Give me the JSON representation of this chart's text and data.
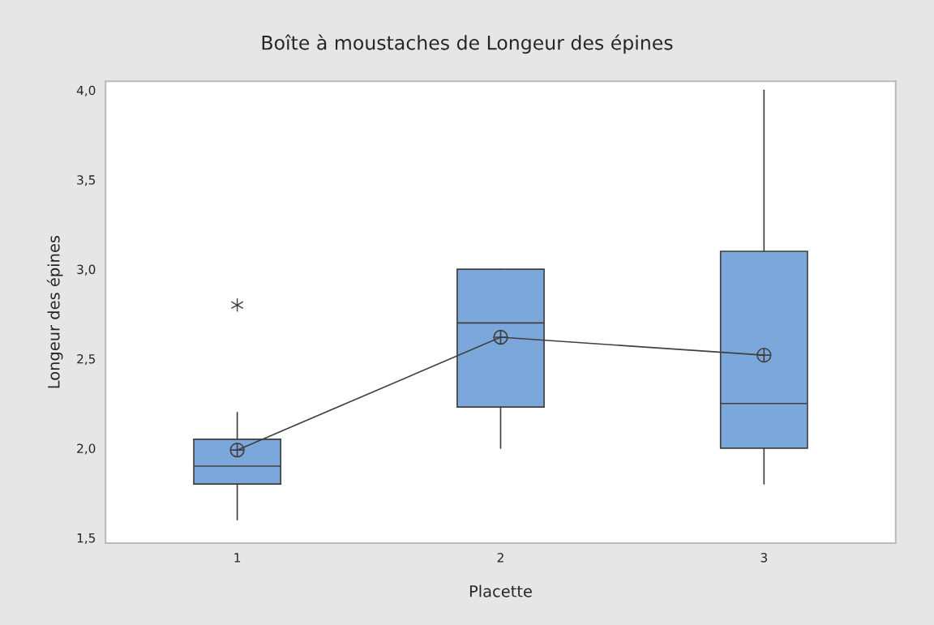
{
  "chart_data": {
    "type": "box",
    "title": "Boîte à moustaches de Longeur des épines",
    "xlabel": "Placette",
    "ylabel": "Longeur des épines",
    "categories": [
      "1",
      "2",
      "3"
    ],
    "boxes": [
      {
        "low": 1.6,
        "q1": 1.8,
        "median": 1.9,
        "q3": 2.05,
        "high": 2.2,
        "outliers": [
          2.8
        ]
      },
      {
        "low": 2.0,
        "q1": 2.23,
        "median": 2.7,
        "q3": 3.0,
        "high": 3.0
      },
      {
        "low": 1.8,
        "q1": 2.0,
        "median": 2.25,
        "q3": 3.1,
        "high": 4.0
      }
    ],
    "color": "#7ba7da",
    "series": [
      {
        "type": "line",
        "color": "#404040",
        "marker": "circle",
        "values": [
          1.99,
          2.62,
          2.52
        ]
      }
    ],
    "ylim": [
      1.47,
      4.05
    ],
    "yticks": [
      {
        "value": 1.5,
        "label": "1,5"
      },
      {
        "value": 2.0,
        "label": "2,0"
      },
      {
        "value": 2.5,
        "label": "2,5"
      },
      {
        "value": 3.0,
        "label": "3,0"
      },
      {
        "value": 3.5,
        "label": "3,5"
      },
      {
        "value": 4.0,
        "label": "4,0"
      }
    ],
    "grid": false,
    "legend": false
  }
}
